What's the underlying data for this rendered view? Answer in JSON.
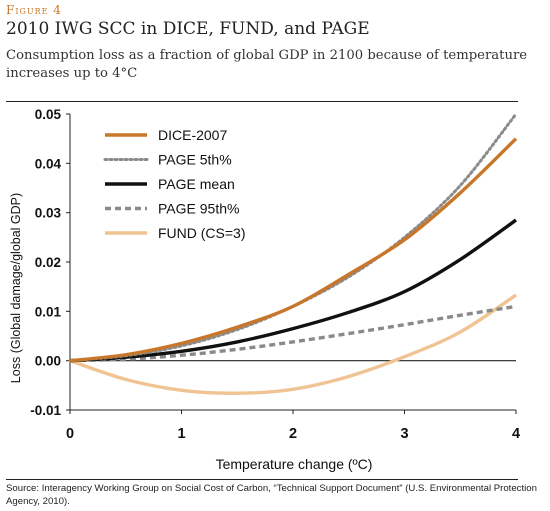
{
  "figure": {
    "label": "Figure 4",
    "title": "2010 IWG SCC in DICE, FUND, and PAGE",
    "subtitle": "Consumption loss as a fraction of global GDP in 2100 because of temperature increases up to 4°C",
    "source": "Source: Interagency Working Group on Social Cost of Carbon, “Technical Support Document” (U.S. Environmental Protection Agency, 2010)."
  },
  "chart_data": {
    "type": "line",
    "title": "",
    "xlabel": "Temperature change (ºC)",
    "ylabel": "Loss (Global damage/global GDP)",
    "xlim": [
      0,
      4
    ],
    "ylim": [
      -0.01,
      0.05
    ],
    "xticks": [
      "0",
      "1",
      "2",
      "3",
      "4"
    ],
    "yticks": [
      "-0.01",
      "0.00",
      "0.01",
      "0.02",
      "0.03",
      "0.04",
      "0.05"
    ],
    "grid": false,
    "legend_position": "top-left",
    "x": [
      0,
      0.5,
      1,
      1.5,
      2,
      2.5,
      3,
      3.5,
      4
    ],
    "series": [
      {
        "name": "DICE-2007",
        "color": "#c8772a",
        "dash": "solid",
        "values": [
          0.0,
          0.0012,
          0.0035,
          0.0068,
          0.011,
          0.0175,
          0.0245,
          0.034,
          0.045
        ]
      },
      {
        "name": "PAGE 5th%",
        "color": "#8a8a8a",
        "dash": "dotted",
        "values": [
          0.0,
          0.001,
          0.003,
          0.0063,
          0.011,
          0.017,
          0.025,
          0.0355,
          0.05
        ]
      },
      {
        "name": "PAGE mean",
        "color": "#111111",
        "dash": "solid",
        "values": [
          0.0,
          0.0007,
          0.0019,
          0.0038,
          0.0065,
          0.0098,
          0.014,
          0.0205,
          0.0285
        ]
      },
      {
        "name": "PAGE 95th%",
        "color": "#8a8a8a",
        "dash": "dashed",
        "values": [
          0.0,
          0.0003,
          0.0011,
          0.0023,
          0.0038,
          0.0055,
          0.0073,
          0.0092,
          0.011
        ]
      },
      {
        "name": "FUND (CS=3)",
        "color": "#f0c393",
        "dash": "solid",
        "values": [
          0.0,
          -0.0038,
          -0.006,
          -0.0066,
          -0.0058,
          -0.0032,
          0.0008,
          0.0058,
          0.0133
        ]
      }
    ]
  }
}
